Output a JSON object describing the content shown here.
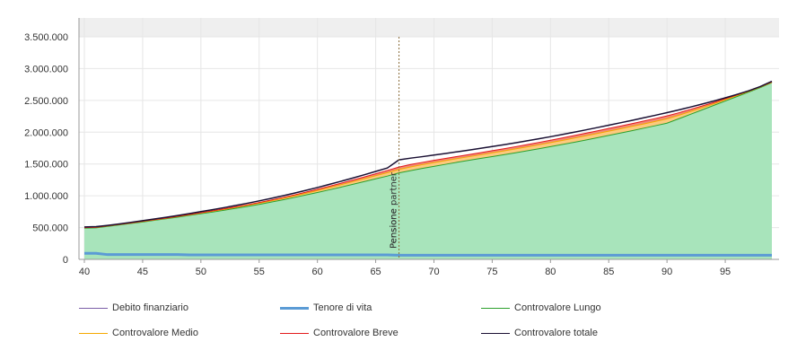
{
  "chart_data": {
    "type": "area",
    "x": [
      40,
      41,
      42,
      43,
      44,
      45,
      46,
      47,
      48,
      49,
      50,
      51,
      52,
      53,
      54,
      55,
      56,
      57,
      58,
      59,
      60,
      61,
      62,
      63,
      64,
      65,
      66,
      67,
      68,
      69,
      70,
      71,
      72,
      73,
      74,
      75,
      76,
      77,
      78,
      79,
      80,
      81,
      82,
      83,
      84,
      85,
      86,
      87,
      88,
      89,
      90,
      91,
      92,
      93,
      94,
      95,
      96,
      97,
      98,
      99
    ],
    "xlim": [
      40,
      99
    ],
    "ylim": [
      0,
      3500000
    ],
    "x_ticks": [
      40,
      45,
      50,
      55,
      60,
      65,
      70,
      75,
      80,
      85,
      90,
      95
    ],
    "y_ticks": [
      0,
      500000,
      1000000,
      1500000,
      2000000,
      2500000,
      3000000,
      3500000
    ],
    "y_tick_labels": [
      "0",
      "500.000",
      "1.000.000",
      "1.500.000",
      "2.000.000",
      "2.500.000",
      "3.000.000",
      "3.500.000"
    ],
    "grid": true,
    "legend_position": "bottom",
    "series": [
      {
        "name": "Debito finanziario",
        "kind": "line",
        "color": "#7b5ea7",
        "values": [
          0,
          0,
          0,
          0,
          0,
          0,
          0,
          0,
          0,
          0,
          0,
          0,
          0,
          0,
          0,
          0,
          0,
          0,
          0,
          0,
          0,
          0,
          0,
          0,
          0,
          0,
          0,
          0,
          0,
          0,
          0,
          0,
          0,
          0,
          0,
          0,
          0,
          0,
          0,
          0,
          0,
          0,
          0,
          0,
          0,
          0,
          0,
          0,
          0,
          0,
          0,
          0,
          0,
          0,
          0,
          0,
          0,
          0,
          0,
          0
        ]
      },
      {
        "name": "Tenore di vita",
        "kind": "line",
        "color": "#5b9bd5",
        "values": [
          95000,
          95000,
          75000,
          75000,
          75000,
          75000,
          75000,
          75000,
          75000,
          70000,
          70000,
          70000,
          70000,
          70000,
          70000,
          70000,
          70000,
          70000,
          70000,
          70000,
          70000,
          70000,
          70000,
          70000,
          70000,
          70000,
          70000,
          65000,
          65000,
          65000,
          65000,
          65000,
          65000,
          65000,
          65000,
          65000,
          65000,
          65000,
          65000,
          65000,
          65000,
          65000,
          65000,
          65000,
          65000,
          65000,
          65000,
          65000,
          65000,
          65000,
          65000,
          65000,
          65000,
          65000,
          65000,
          65000,
          65000,
          65000,
          65000,
          65000
        ]
      },
      {
        "name": "Controvalore Lungo",
        "kind": "area",
        "color": "#2ca02c",
        "fill": "#a8e4bb",
        "values": [
          490000,
          496000,
          518000,
          541000,
          564000,
          588000,
          613000,
          638000,
          664000,
          691000,
          718000,
          745000,
          773000,
          803000,
          833000,
          865000,
          899000,
          935000,
          973000,
          1012000,
          1052000,
          1093000,
          1135000,
          1178000,
          1222000,
          1266000,
          1310000,
          1360000,
          1395000,
          1431000,
          1463000,
          1495000,
          1527000,
          1557000,
          1587000,
          1616000,
          1646000,
          1676000,
          1707000,
          1740000,
          1773000,
          1806000,
          1840000,
          1876000,
          1912000,
          1949000,
          1986000,
          2024000,
          2063000,
          2102000,
          2142000,
          2210000,
          2280000,
          2350000,
          2420000,
          2490000,
          2560000,
          2630000,
          2700000,
          2780000
        ]
      },
      {
        "name": "Controvalore Medio",
        "kind": "area",
        "color": "#f5a800",
        "fill": "#fcc97e",
        "values": [
          500000,
          504000,
          525000,
          548000,
          571000,
          596000,
          621000,
          646000,
          673000,
          700000,
          728000,
          757000,
          787000,
          818000,
          850000,
          883000,
          919000,
          957000,
          997000,
          1039000,
          1082000,
          1127000,
          1173000,
          1220000,
          1268000,
          1316000,
          1364000,
          1415000,
          1454000,
          1490000,
          1522000,
          1554000,
          1585000,
          1615000,
          1645000,
          1676000,
          1706000,
          1737000,
          1769000,
          1802000,
          1836000,
          1870000,
          1906000,
          1942000,
          1979000,
          2017000,
          2054000,
          2092000,
          2130000,
          2170000,
          2210000,
          2265000,
          2325000,
          2385000,
          2445000,
          2510000,
          2575000,
          2640000,
          2710000,
          2785000
        ]
      },
      {
        "name": "Controvalore Breve",
        "kind": "area",
        "color": "#e31a1c",
        "fill": "#f08a7a",
        "values": [
          500000,
          505000,
          527000,
          550000,
          574000,
          599000,
          624000,
          650000,
          677000,
          705000,
          734000,
          764000,
          795000,
          827000,
          860000,
          895000,
          932000,
          971000,
          1013000,
          1057000,
          1102000,
          1148000,
          1196000,
          1245000,
          1295000,
          1346000,
          1398000,
          1452000,
          1492000,
          1525000,
          1557000,
          1587000,
          1618000,
          1648000,
          1678000,
          1709000,
          1740000,
          1772000,
          1805000,
          1839000,
          1874000,
          1909000,
          1946000,
          1983000,
          2020000,
          2058000,
          2096000,
          2135000,
          2175000,
          2215000,
          2256000,
          2305000,
          2358000,
          2412000,
          2466000,
          2525000,
          2585000,
          2648000,
          2715000,
          2790000
        ]
      },
      {
        "name": "Controvalore totale",
        "kind": "line",
        "color": "#1a1033",
        "values": [
          510000,
          515000,
          535000,
          558000,
          583000,
          609000,
          635000,
          662000,
          690000,
          720000,
          751000,
          782000,
          814000,
          848000,
          883000,
          920000,
          958000,
          999000,
          1041000,
          1085000,
          1130000,
          1178000,
          1227000,
          1277000,
          1329000,
          1383000,
          1437000,
          1565000,
          1592000,
          1615000,
          1640000,
          1665000,
          1692000,
          1719000,
          1746000,
          1774000,
          1803000,
          1833000,
          1864000,
          1896000,
          1929000,
          1963000,
          1999000,
          2035000,
          2072000,
          2110000,
          2148000,
          2186000,
          2226000,
          2266000,
          2308000,
          2350000,
          2395000,
          2441000,
          2489000,
          2540000,
          2594000,
          2651000,
          2717000,
          2800000
        ]
      }
    ],
    "annotations": [
      {
        "x": 67,
        "label": "Pensione"
      },
      {
        "x": 67,
        "label": "Pensione partner"
      }
    ]
  }
}
